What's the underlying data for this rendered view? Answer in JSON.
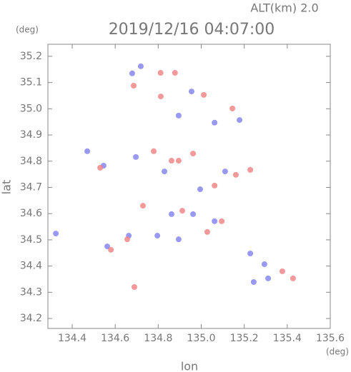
{
  "chart_data": {
    "type": "scatter",
    "title": "2019/12/16 04:07:00",
    "subtitle": "ALT(km) 2.0",
    "xlabel": "lon",
    "ylabel": "lat",
    "xunit": "(deg)",
    "yunit": "(deg)",
    "xlim": [
      134.287,
      135.6
    ],
    "ylim": [
      34.162,
      35.246
    ],
    "xticks": [
      134.4,
      134.6,
      134.8,
      {
        "value": 135.0,
        "label": "135.0"
      },
      135.2,
      135.4,
      135.6
    ],
    "yticks": [
      34.2,
      34.3,
      34.4,
      34.5,
      34.6,
      34.7,
      34.8,
      34.9,
      {
        "value": 35.0,
        "label": "35.0"
      },
      35.1,
      35.2
    ],
    "series": [
      {
        "color": "#7f7ff0",
        "x": [
          134.324,
          134.679,
          134.719,
          134.955,
          134.895,
          135.062,
          134.47,
          134.546,
          134.829,
          134.862,
          134.895,
          135.062,
          135.294,
          135.311,
          135.244,
          135.111,
          134.962,
          134.796,
          134.663,
          134.563,
          134.995,
          135.178,
          134.696,
          135.228
        ],
        "y": [
          34.524,
          35.135,
          35.162,
          35.066,
          34.974,
          34.947,
          34.838,
          34.783,
          34.761,
          34.598,
          34.502,
          34.571,
          34.407,
          34.353,
          34.339,
          34.761,
          34.598,
          34.516,
          34.516,
          34.475,
          34.693,
          34.957,
          34.816,
          34.448
        ]
      },
      {
        "color": "#f08080",
        "x": [
          134.689,
          134.58,
          134.656,
          134.811,
          134.878,
          134.686,
          134.812,
          135.012,
          135.145,
          134.779,
          134.862,
          134.962,
          135.161,
          135.228,
          135.427,
          135.377,
          135.028,
          134.912,
          134.729,
          135.095,
          134.53,
          135.062,
          134.895
        ],
        "y": [
          34.32,
          34.462,
          34.502,
          35.137,
          35.137,
          35.088,
          35.047,
          35.053,
          35.001,
          34.838,
          34.802,
          34.829,
          34.748,
          34.767,
          34.353,
          34.38,
          34.53,
          34.611,
          34.63,
          34.571,
          34.775,
          34.707,
          34.802
        ]
      }
    ]
  }
}
